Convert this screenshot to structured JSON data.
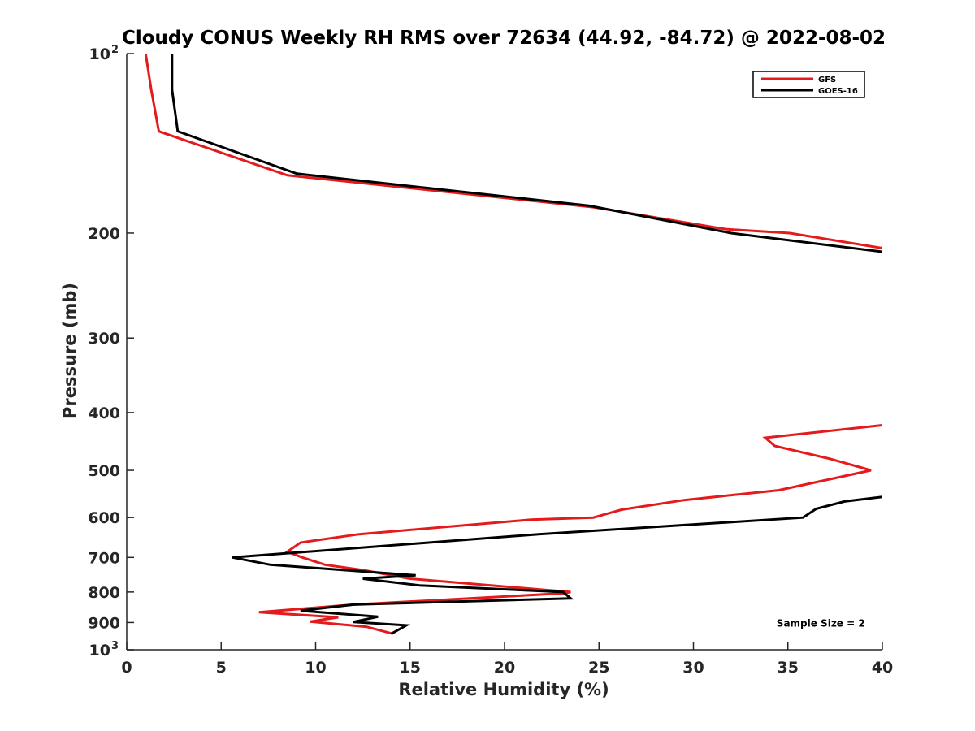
{
  "chart_data": {
    "type": "line",
    "title": "Cloudy CONUS Weekly RH RMS over 72634 (44.92, -84.72) @ 2022-08-02",
    "xlabel": "Relative Humidity (%)",
    "ylabel": "Pressure (mb)",
    "xlim": [
      0,
      40
    ],
    "ylim": [
      100,
      1000
    ],
    "y_scale": "log",
    "y_reversed": true,
    "grid": false,
    "legend_position": "top-right",
    "x_ticks": [
      0,
      5,
      10,
      15,
      20,
      25,
      30,
      35,
      40
    ],
    "x_tick_labels": [
      "0",
      "5",
      "10",
      "15",
      "20",
      "25",
      "30",
      "35",
      "40"
    ],
    "y_ticks": [
      100,
      200,
      300,
      400,
      500,
      600,
      700,
      800,
      900,
      1000
    ],
    "y_tick_labels": [
      {
        "base": "10",
        "exp": "2"
      },
      {
        "base": "200",
        "exp": ""
      },
      {
        "base": "300",
        "exp": ""
      },
      {
        "base": "400",
        "exp": ""
      },
      {
        "base": "500",
        "exp": ""
      },
      {
        "base": "600",
        "exp": ""
      },
      {
        "base": "700",
        "exp": ""
      },
      {
        "base": "800",
        "exp": ""
      },
      {
        "base": "900",
        "exp": ""
      },
      {
        "base": "10",
        "exp": "3"
      }
    ],
    "series": [
      {
        "name": "GFS",
        "color": "#e41a1c",
        "points": [
          [
            1.0,
            100
          ],
          [
            1.3,
            115
          ],
          [
            1.7,
            135
          ],
          [
            8.5,
            160
          ],
          [
            24.7,
            181
          ],
          [
            31.7,
            197
          ],
          [
            35.1,
            200
          ],
          [
            40.0,
            212
          ],
          [
            null,
            null
          ],
          [
            40.0,
            420
          ],
          [
            38.8,
            424
          ],
          [
            33.8,
            441
          ],
          [
            34.3,
            455
          ],
          [
            37.2,
            478
          ],
          [
            39.4,
            500
          ],
          [
            37.4,
            516
          ],
          [
            34.5,
            540
          ],
          [
            29.5,
            561
          ],
          [
            26.2,
            582
          ],
          [
            24.7,
            600
          ],
          [
            21.4,
            605
          ],
          [
            12.3,
            640
          ],
          [
            9.2,
            661
          ],
          [
            8.5,
            685
          ],
          [
            9.3,
            700
          ],
          [
            10.5,
            720
          ],
          [
            12.5,
            735
          ],
          [
            15.0,
            760
          ],
          [
            23.5,
            800
          ],
          [
            23.1,
            804
          ],
          [
            12.0,
            840
          ],
          [
            7.0,
            865
          ],
          [
            11.2,
            882
          ],
          [
            9.7,
            897
          ],
          [
            12.7,
            915
          ],
          [
            14.1,
            940
          ]
        ]
      },
      {
        "name": "GOES-16",
        "color": "#000000",
        "points": [
          [
            2.4,
            100
          ],
          [
            2.4,
            115
          ],
          [
            2.7,
            135
          ],
          [
            9.0,
            159
          ],
          [
            24.5,
            180
          ],
          [
            32.0,
            200
          ],
          [
            40.0,
            215
          ],
          [
            null,
            null
          ],
          [
            40.0,
            554
          ],
          [
            38.0,
            564
          ],
          [
            36.5,
            580
          ],
          [
            35.8,
            600
          ],
          [
            21.8,
            640
          ],
          [
            5.6,
            700
          ],
          [
            7.6,
            720
          ],
          [
            15.3,
            750
          ],
          [
            12.5,
            760
          ],
          [
            15.5,
            780
          ],
          [
            23.1,
            800
          ],
          [
            23.5,
            820
          ],
          [
            12.0,
            840
          ],
          [
            9.2,
            860
          ],
          [
            13.3,
            880
          ],
          [
            12.0,
            898
          ],
          [
            14.8,
            910
          ],
          [
            14.0,
            940
          ]
        ]
      }
    ],
    "annotations": [
      {
        "text": "Sample Size = 2",
        "x": 34.4,
        "y": 900
      }
    ]
  }
}
